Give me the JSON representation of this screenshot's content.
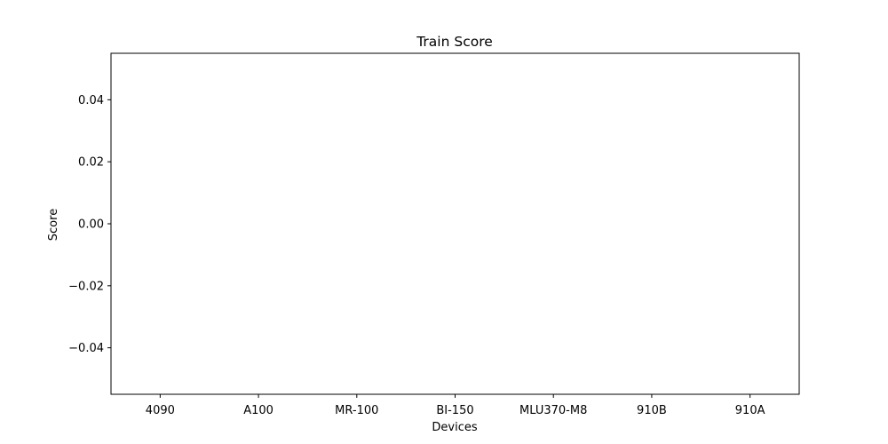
{
  "chart_data": {
    "type": "bar",
    "title": "Train Score",
    "xlabel": "Devices",
    "ylabel": "Score",
    "categories": [
      "4090",
      "A100",
      "MR-100",
      "BI-150",
      "MLU370-M8",
      "910B",
      "910A"
    ],
    "values": [
      0,
      0,
      0,
      0,
      0,
      0,
      0
    ],
    "ylim": [
      -0.055,
      0.055
    ],
    "yticks": [
      0.04,
      0.02,
      0.0,
      -0.02,
      -0.04
    ],
    "ytick_labels": [
      "0.04",
      "0.02",
      "0.00",
      "−0.02",
      "−0.04"
    ],
    "grid": false,
    "legend": "none"
  }
}
